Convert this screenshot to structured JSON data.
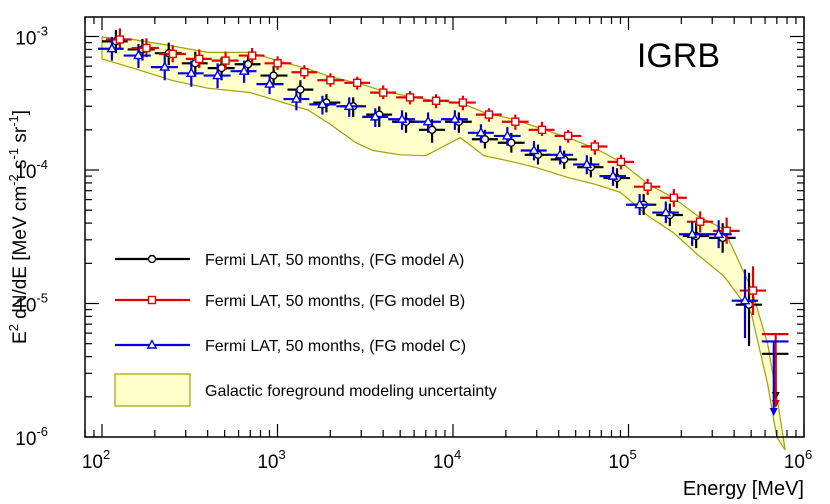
{
  "chart_data": {
    "type": "scatter",
    "title": "IGRB",
    "xlabel": "Energy [MeV]",
    "ylabel_parts": [
      "E",
      "2",
      " dN/dE [MeV cm",
      "-2",
      " s",
      "-1",
      " sr",
      "-1",
      "]"
    ],
    "x_scale": "log",
    "y_scale": "log",
    "xlim": [
      80,
      1000000
    ],
    "ylim": [
      1e-06,
      0.0014
    ],
    "x_ticks": [
      {
        "value": 100,
        "base": "10",
        "exp": "2"
      },
      {
        "value": 1000,
        "base": "10",
        "exp": "3"
      },
      {
        "value": 10000,
        "base": "10",
        "exp": "4"
      },
      {
        "value": 100000,
        "base": "10",
        "exp": "5"
      },
      {
        "value": 1000000,
        "base": "10",
        "exp": "6"
      }
    ],
    "y_ticks": [
      {
        "value": 1e-06,
        "base": "10",
        "exp": "-6"
      },
      {
        "value": 1e-05,
        "base": "10",
        "exp": "-5"
      },
      {
        "value": 0.0001,
        "base": "10",
        "exp": "-4"
      },
      {
        "value": 0.001,
        "base": "10",
        "exp": "-3"
      }
    ],
    "band": {
      "name": "Galactic foreground modeling uncertainty",
      "fill": "#ffffcc",
      "stroke": "#a0a000",
      "upper": [
        [
          100,
          0.00099
        ],
        [
          150,
          0.00095
        ],
        [
          250,
          0.00085
        ],
        [
          400,
          0.00076
        ],
        [
          700,
          0.00076
        ],
        [
          1000,
          0.00066
        ],
        [
          1500,
          0.00057
        ],
        [
          2000,
          0.0005
        ],
        [
          3000,
          0.00044
        ],
        [
          4000,
          0.00039
        ],
        [
          6000,
          0.00035
        ],
        [
          8000,
          0.00033
        ],
        [
          11000,
          0.00032
        ],
        [
          15000,
          0.00027
        ],
        [
          22000,
          0.00024
        ],
        [
          30000,
          0.00021
        ],
        [
          45000,
          0.000175
        ],
        [
          65000,
          0.000145
        ],
        [
          90000,
          0.000115
        ],
        [
          130000,
          7.8e-05
        ],
        [
          180000,
          6.2e-05
        ],
        [
          250000,
          4.5e-05
        ],
        [
          350000,
          3.6e-05
        ],
        [
          500000,
          1.3e-05
        ],
        [
          620000,
          5e-06
        ],
        [
          720000,
          1.6e-06
        ],
        [
          780000,
          8e-07
        ]
      ],
      "lower": [
        [
          100,
          0.00068
        ],
        [
          150,
          0.00058
        ],
        [
          250,
          0.00047
        ],
        [
          400,
          0.00041
        ],
        [
          700,
          0.00038
        ],
        [
          1000,
          0.00033
        ],
        [
          1500,
          0.00028
        ],
        [
          2000,
          0.00022
        ],
        [
          2800,
          0.00016
        ],
        [
          3500,
          0.00014
        ],
        [
          5000,
          0.00013
        ],
        [
          7000,
          0.000128
        ],
        [
          11000,
          0.000175
        ],
        [
          15000,
          0.000128
        ],
        [
          22000,
          0.000115
        ],
        [
          30000,
          0.000104
        ],
        [
          45000,
          8.8e-05
        ],
        [
          65000,
          7.8e-05
        ],
        [
          90000,
          6.8e-05
        ],
        [
          130000,
          4.5e-05
        ],
        [
          180000,
          3.4e-05
        ],
        [
          250000,
          2.3e-05
        ],
        [
          350000,
          1.6e-05
        ],
        [
          500000,
          8.5e-06
        ],
        [
          620000,
          2.5e-06
        ],
        [
          700000,
          8e-07
        ]
      ]
    },
    "series": [
      {
        "name": "Fermi LAT, 50 months, (FG model A)",
        "color": "#000000",
        "marker": "circle",
        "points": [
          [
            120,
            0.00092,
            100,
            140,
            0.00075,
            0.00112
          ],
          [
            170,
            0.0008,
            140,
            200,
            0.00066,
            0.00096
          ],
          [
            240,
            0.00075,
            200,
            285,
            0.00061,
            0.0009
          ],
          [
            340,
            0.00063,
            285,
            400,
            0.00051,
            0.00077
          ],
          [
            480,
            0.00058,
            400,
            570,
            0.00047,
            0.0007
          ],
          [
            680,
            0.00062,
            570,
            800,
            0.00052,
            0.00073
          ],
          [
            950,
            0.00051,
            800,
            1140,
            0.00043,
            0.0006
          ],
          [
            1350,
            0.0004,
            1140,
            1600,
            0.00033,
            0.00047
          ],
          [
            1900,
            0.00032,
            1600,
            2280,
            0.00027,
            0.00037
          ],
          [
            2700,
            0.0003,
            2280,
            3200,
            0.00025,
            0.00035
          ],
          [
            3800,
            0.00026,
            3200,
            4500,
            0.00021,
            0.0003
          ],
          [
            5400,
            0.00023,
            4500,
            6400,
            0.00019,
            0.00027
          ],
          [
            7600,
            0.0002,
            6400,
            9000,
            0.00016,
            0.00024
          ],
          [
            10800,
            0.00023,
            9000,
            12800,
            0.00019,
            0.00027
          ],
          [
            15200,
            0.00017,
            12800,
            18000,
            0.000145,
            0.0002
          ],
          [
            21500,
            0.00016,
            18000,
            25600,
            0.000135,
            0.00019
          ],
          [
            30500,
            0.00013,
            25600,
            36000,
            0.00011,
            0.000155
          ],
          [
            43000,
            0.00012,
            36000,
            51000,
            0.000102,
            0.00014
          ],
          [
            61000,
            0.000105,
            51000,
            72000,
            8.8e-05,
            0.000125
          ],
          [
            86000,
            8.7e-05,
            72000,
            102000,
            7.3e-05,
            0.000103
          ],
          [
            122000,
            5.5e-05,
            102000,
            144000,
            4.6e-05,
            6.6e-05
          ],
          [
            172000,
            4.6e-05,
            144000,
            204000,
            3.8e-05,
            5.6e-05
          ],
          [
            243000,
            3.2e-05,
            204000,
            288000,
            2.6e-05,
            4e-05
          ],
          [
            344000,
            3.1e-05,
            288000,
            408000,
            2.4e-05,
            4e-05
          ],
          [
            486000,
            9.8e-06,
            408000,
            576000,
            4.8e-06,
            1.7e-05
          ]
        ]
      },
      {
        "name": "Fermi LAT, 50 months, (FG model B)",
        "color": "#e00000",
        "marker": "square",
        "points": [
          [
            120,
            0.00095,
            100,
            140,
            0.00082,
            0.00115
          ],
          [
            170,
            0.00082,
            140,
            200,
            0.0007,
            0.00097
          ],
          [
            240,
            0.00074,
            200,
            285,
            0.00064,
            0.00086
          ],
          [
            340,
            0.00068,
            285,
            400,
            0.00058,
            0.0008
          ],
          [
            480,
            0.00066,
            400,
            570,
            0.00056,
            0.00077
          ],
          [
            680,
            0.00072,
            570,
            800,
            0.00063,
            0.00082
          ],
          [
            950,
            0.00063,
            800,
            1140,
            0.00056,
            0.00071
          ],
          [
            1350,
            0.00054,
            1140,
            1600,
            0.00048,
            0.00061
          ],
          [
            1900,
            0.00047,
            1600,
            2280,
            0.00042,
            0.00053
          ],
          [
            2700,
            0.00045,
            2280,
            3200,
            0.0004,
            0.0005
          ],
          [
            3800,
            0.00038,
            3200,
            4500,
            0.00034,
            0.00043
          ],
          [
            5400,
            0.00035,
            4500,
            6400,
            0.00031,
            0.00039
          ],
          [
            7600,
            0.00033,
            6400,
            9000,
            0.00029,
            0.00037
          ],
          [
            10800,
            0.00032,
            9000,
            12800,
            0.00028,
            0.00036
          ],
          [
            15200,
            0.00026,
            12800,
            18000,
            0.00023,
            0.00029
          ],
          [
            21500,
            0.00023,
            18000,
            25600,
            0.0002,
            0.00026
          ],
          [
            30500,
            0.0002,
            25600,
            36000,
            0.00018,
            0.00023
          ],
          [
            43000,
            0.00018,
            36000,
            51000,
            0.00016,
            0.0002
          ],
          [
            61000,
            0.00015,
            51000,
            72000,
            0.00013,
            0.000168
          ],
          [
            86000,
            0.000115,
            72000,
            102000,
            0.000101,
            0.00013
          ],
          [
            122000,
            7.5e-05,
            102000,
            144000,
            6.5e-05,
            8.6e-05
          ],
          [
            172000,
            6.2e-05,
            144000,
            204000,
            5.3e-05,
            7.2e-05
          ],
          [
            243000,
            4.1e-05,
            204000,
            288000,
            3.4e-05,
            4.9e-05
          ],
          [
            344000,
            3.5e-05,
            288000,
            408000,
            2.8e-05,
            4.4e-05
          ],
          [
            486000,
            1.25e-05,
            408000,
            576000,
            8.2e-06,
            1.9e-05
          ]
        ]
      },
      {
        "name": "Fermi LAT, 50 months, (FG model C)",
        "color": "#0000e0",
        "marker": "triangle",
        "points": [
          [
            120,
            0.00081,
            100,
            140,
            0.00066,
            0.00099
          ],
          [
            170,
            0.00072,
            140,
            200,
            0.00058,
            0.00088
          ],
          [
            240,
            0.00059,
            200,
            285,
            0.00047,
            0.00073
          ],
          [
            340,
            0.00053,
            285,
            400,
            0.00042,
            0.00066
          ],
          [
            480,
            0.00051,
            400,
            570,
            0.00041,
            0.00063
          ],
          [
            680,
            0.00055,
            570,
            800,
            0.00045,
            0.00066
          ],
          [
            950,
            0.00044,
            800,
            1140,
            0.00037,
            0.00052
          ],
          [
            1350,
            0.00034,
            1140,
            1600,
            0.00028,
            0.0004
          ],
          [
            1900,
            0.00031,
            1600,
            2280,
            0.00026,
            0.00036
          ],
          [
            2700,
            0.0003,
            2280,
            3200,
            0.00025,
            0.00035
          ],
          [
            3800,
            0.00025,
            3200,
            4500,
            0.00021,
            0.00029
          ],
          [
            5400,
            0.00024,
            4500,
            6400,
            0.0002,
            0.00028
          ],
          [
            7600,
            0.00023,
            6400,
            9000,
            0.00019,
            0.00027
          ],
          [
            10800,
            0.00024,
            9000,
            12800,
            0.0002,
            0.00028
          ],
          [
            15200,
            0.00019,
            12800,
            18000,
            0.00016,
            0.00022
          ],
          [
            21500,
            0.00018,
            18000,
            25600,
            0.000152,
            0.00021
          ],
          [
            30500,
            0.00014,
            25600,
            36000,
            0.000118,
            0.000165
          ],
          [
            43000,
            0.00013,
            36000,
            51000,
            0.00011,
            0.000152
          ],
          [
            61000,
            0.00011,
            51000,
            72000,
            9.3e-05,
            0.000129
          ],
          [
            86000,
            9e-05,
            72000,
            102000,
            7.6e-05,
            0.000106
          ],
          [
            122000,
            5.5e-05,
            102000,
            144000,
            4.6e-05,
            6.6e-05
          ],
          [
            172000,
            4.8e-05,
            144000,
            204000,
            4e-05,
            5.8e-05
          ],
          [
            243000,
            3.3e-05,
            204000,
            288000,
            2.7e-05,
            4.1e-05
          ],
          [
            344000,
            3.3e-05,
            288000,
            408000,
            2.6e-05,
            4.2e-05
          ],
          [
            486000,
            1.05e-05,
            408000,
            576000,
            5.5e-06,
            1.8e-05
          ]
        ]
      }
    ],
    "upper_limits": [
      {
        "series": "Fermi LAT, 50 months, (FG model A)",
        "x": 690000,
        "x_lo": 576000,
        "x_hi": 816000,
        "y": 4.2e-06,
        "color": "#000000"
      },
      {
        "series": "Fermi LAT, 50 months, (FG model B)",
        "x": 690000,
        "x_lo": 576000,
        "x_hi": 816000,
        "y": 5.9e-06,
        "color": "#e00000"
      },
      {
        "series": "Fermi LAT, 50 months, (FG model C)",
        "x": 690000,
        "x_lo": 576000,
        "x_hi": 816000,
        "y": 5.2e-06,
        "color": "#0000e0"
      }
    ],
    "legend": {
      "position": "bottom-left",
      "entries": [
        {
          "label": "Fermi LAT, 50 months, (FG model A)",
          "kind": "line",
          "color": "#000000",
          "marker": "circle"
        },
        {
          "label": "Fermi LAT, 50 months, (FG model B)",
          "kind": "line",
          "color": "#e00000",
          "marker": "square"
        },
        {
          "label": "Fermi LAT, 50 months, (FG model C)",
          "kind": "line",
          "color": "#0000e0",
          "marker": "triangle"
        },
        {
          "label": "Galactic foreground modeling uncertainty",
          "kind": "box",
          "color": "#ffffcc",
          "stroke": "#a0a000"
        }
      ]
    }
  }
}
